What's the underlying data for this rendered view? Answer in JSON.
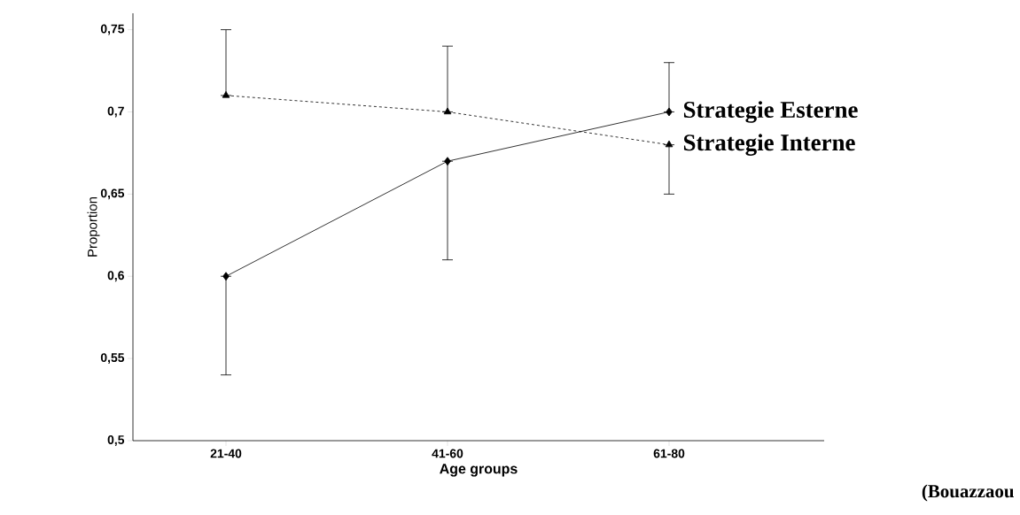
{
  "chart_data": {
    "type": "line",
    "xlabel": "Age groups",
    "ylabel": "Proportion",
    "categories": [
      "21-40",
      "41-60",
      "61-80"
    ],
    "series": [
      {
        "name": "Strategie Esterne",
        "color": "#000000",
        "marker": "diamond",
        "line_style": "solid",
        "values": [
          0.6,
          0.67,
          0.7
        ],
        "errors": [
          [
            0.54,
            0.6
          ],
          [
            0.61,
            0.67
          ],
          [
            0.7,
            0.73
          ]
        ]
      },
      {
        "name": "Strategie Interne",
        "color": "#000000",
        "marker": "triangle",
        "line_style": "dashed",
        "values": [
          0.71,
          0.7,
          0.68
        ],
        "errors": [
          [
            0.71,
            0.75
          ],
          [
            0.7,
            0.74
          ],
          [
            0.65,
            0.68
          ]
        ]
      }
    ],
    "ylim": [
      0.5,
      0.76
    ],
    "yticks": [
      {
        "value": 0.5,
        "label": "0,5"
      },
      {
        "value": 0.55,
        "label": "0,55"
      },
      {
        "value": 0.6,
        "label": "0,6"
      },
      {
        "value": 0.65,
        "label": "0,65"
      },
      {
        "value": 0.7,
        "label": "0,7"
      },
      {
        "value": 0.75,
        "label": "0,75"
      }
    ],
    "grid": false,
    "annotations": [
      "(Bouazzaou"
    ]
  }
}
